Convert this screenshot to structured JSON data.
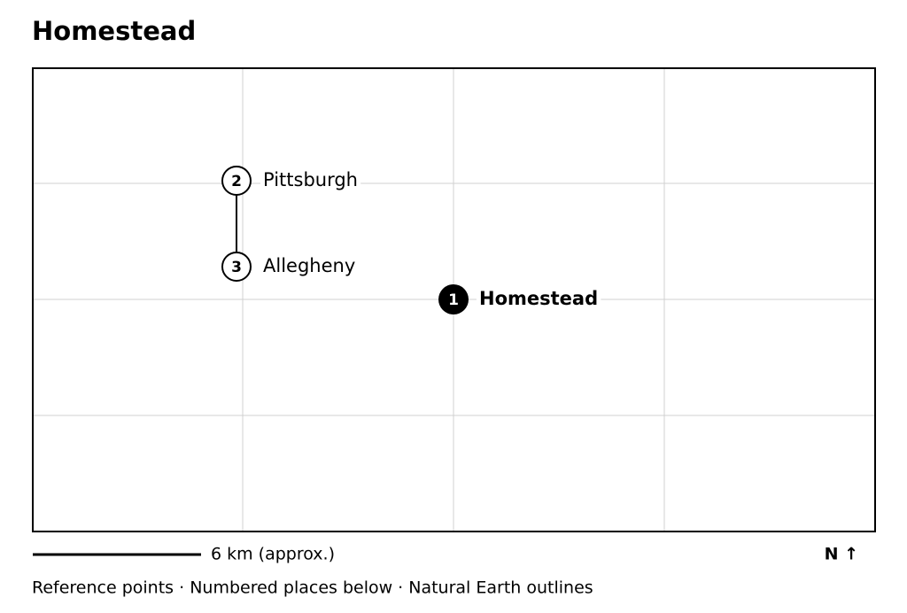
{
  "header": {
    "title": "Homestead"
  },
  "places": [
    {
      "number": "1",
      "name": "Homestead"
    },
    {
      "number": "2",
      "name": "Pittsburgh"
    },
    {
      "number": "3",
      "name": "Allegheny"
    }
  ],
  "scale": {
    "label": "6 km (approx.)"
  },
  "north": {
    "label": "N ↑"
  },
  "footer": {
    "text": "Reference points · Numbered places below · Natural Earth outlines"
  }
}
